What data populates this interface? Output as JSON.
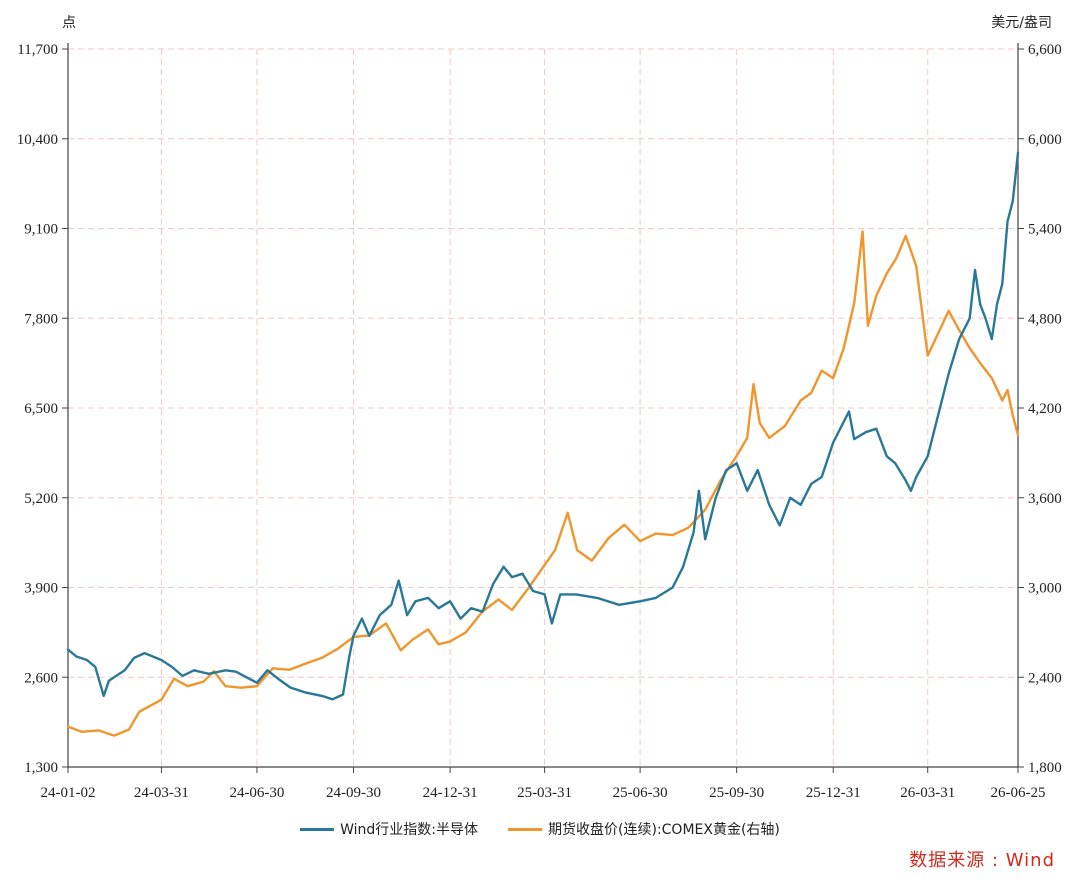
{
  "chart_data": {
    "type": "line",
    "left_axis": {
      "unit": "点",
      "ticks": [
        "11,700",
        "10,400",
        "9,100",
        "7,800",
        "6,500",
        "5,200",
        "3,900",
        "2,600",
        "1,300"
      ],
      "ylim": [
        1300,
        11700
      ]
    },
    "right_axis": {
      "unit": "美元/盎司",
      "ticks": [
        "6,600",
        "6,000",
        "5,400",
        "4,800",
        "4,200",
        "3,600",
        "3,000",
        "2,400",
        "1,800"
      ],
      "ylim": [
        1800,
        6600
      ]
    },
    "x_ticks": [
      "24-01-02",
      "24-03-31",
      "24-06-30",
      "24-09-30",
      "24-12-31",
      "25-03-31",
      "25-06-30",
      "25-09-30",
      "25-12-31",
      "26-03-31",
      "26-06-25"
    ],
    "grid": true,
    "legend_position": "bottom",
    "series": [
      {
        "name": "Wind行业指数:半导体",
        "axis": "left",
        "color": "#2a7897",
        "points": [
          [
            "24-01-02",
            3000
          ],
          [
            "24-01-10",
            2900
          ],
          [
            "24-01-20",
            2850
          ],
          [
            "24-01-28",
            2750
          ],
          [
            "24-02-05",
            2330
          ],
          [
            "24-02-10",
            2550
          ],
          [
            "24-02-25",
            2700
          ],
          [
            "24-03-05",
            2880
          ],
          [
            "24-03-15",
            2950
          ],
          [
            "24-03-31",
            2850
          ],
          [
            "24-04-10",
            2750
          ],
          [
            "24-04-20",
            2620
          ],
          [
            "24-05-01",
            2700
          ],
          [
            "24-05-15",
            2650
          ],
          [
            "24-05-31",
            2700
          ],
          [
            "24-06-10",
            2680
          ],
          [
            "24-06-20",
            2600
          ],
          [
            "24-06-30",
            2520
          ],
          [
            "24-07-10",
            2700
          ],
          [
            "24-07-20",
            2580
          ],
          [
            "24-08-01",
            2450
          ],
          [
            "24-08-15",
            2380
          ],
          [
            "24-08-31",
            2330
          ],
          [
            "24-09-10",
            2280
          ],
          [
            "24-09-20",
            2350
          ],
          [
            "24-09-26",
            2900
          ],
          [
            "24-09-30",
            3200
          ],
          [
            "24-10-08",
            3450
          ],
          [
            "24-10-15",
            3200
          ],
          [
            "24-10-25",
            3500
          ],
          [
            "24-11-05",
            3650
          ],
          [
            "24-11-12",
            4000
          ],
          [
            "24-11-20",
            3500
          ],
          [
            "24-11-28",
            3700
          ],
          [
            "24-12-10",
            3750
          ],
          [
            "24-12-20",
            3600
          ],
          [
            "24-12-31",
            3700
          ],
          [
            "25-01-10",
            3450
          ],
          [
            "25-01-20",
            3600
          ],
          [
            "25-01-31",
            3550
          ],
          [
            "25-02-10",
            3950
          ],
          [
            "25-02-20",
            4200
          ],
          [
            "25-02-28",
            4050
          ],
          [
            "25-03-10",
            4100
          ],
          [
            "25-03-20",
            3850
          ],
          [
            "25-03-31",
            3800
          ],
          [
            "25-04-07",
            3380
          ],
          [
            "25-04-15",
            3800
          ],
          [
            "25-04-30",
            3800
          ],
          [
            "25-05-20",
            3750
          ],
          [
            "25-06-10",
            3650
          ],
          [
            "25-06-30",
            3700
          ],
          [
            "25-07-15",
            3750
          ],
          [
            "25-07-31",
            3900
          ],
          [
            "25-08-10",
            4200
          ],
          [
            "25-08-20",
            4700
          ],
          [
            "25-08-25",
            5300
          ],
          [
            "25-08-31",
            4600
          ],
          [
            "25-09-10",
            5200
          ],
          [
            "25-09-20",
            5600
          ],
          [
            "25-09-30",
            5700
          ],
          [
            "25-10-10",
            5300
          ],
          [
            "25-10-20",
            5600
          ],
          [
            "25-10-31",
            5100
          ],
          [
            "25-11-10",
            4800
          ],
          [
            "25-11-20",
            5200
          ],
          [
            "25-11-30",
            5100
          ],
          [
            "25-12-10",
            5400
          ],
          [
            "25-12-20",
            5500
          ],
          [
            "25-12-31",
            6000
          ],
          [
            "26-01-10",
            6300
          ],
          [
            "26-01-15",
            6450
          ],
          [
            "26-01-20",
            6050
          ],
          [
            "26-01-31",
            6150
          ],
          [
            "26-02-10",
            6200
          ],
          [
            "26-02-20",
            5800
          ],
          [
            "26-02-28",
            5700
          ],
          [
            "26-03-10",
            5450
          ],
          [
            "26-03-15",
            5300
          ],
          [
            "26-03-20",
            5500
          ],
          [
            "26-03-31",
            5800
          ],
          [
            "26-04-10",
            6400
          ],
          [
            "26-04-20",
            7000
          ],
          [
            "26-04-30",
            7500
          ],
          [
            "26-05-10",
            7800
          ],
          [
            "26-05-15",
            8500
          ],
          [
            "26-05-20",
            8000
          ],
          [
            "26-05-25",
            7800
          ],
          [
            "26-05-31",
            7500
          ],
          [
            "26-06-05",
            8000
          ],
          [
            "26-06-10",
            8300
          ],
          [
            "26-06-15",
            9200
          ],
          [
            "26-06-20",
            9500
          ],
          [
            "26-06-25",
            10200
          ]
        ]
      },
      {
        "name": "期货收盘价(连续):COMEX黄金(右轴)",
        "axis": "right",
        "color": "#f0962c",
        "points": [
          [
            "24-01-02",
            2070
          ],
          [
            "24-01-15",
            2035
          ],
          [
            "24-01-31",
            2045
          ],
          [
            "24-02-15",
            2010
          ],
          [
            "24-02-29",
            2050
          ],
          [
            "24-03-10",
            2170
          ],
          [
            "24-03-31",
            2250
          ],
          [
            "24-04-12",
            2390
          ],
          [
            "24-04-25",
            2340
          ],
          [
            "24-05-10",
            2370
          ],
          [
            "24-05-20",
            2440
          ],
          [
            "24-05-31",
            2340
          ],
          [
            "24-06-15",
            2330
          ],
          [
            "24-06-30",
            2340
          ],
          [
            "24-07-15",
            2460
          ],
          [
            "24-07-31",
            2450
          ],
          [
            "24-08-15",
            2490
          ],
          [
            "24-08-31",
            2530
          ],
          [
            "24-09-15",
            2590
          ],
          [
            "24-09-30",
            2670
          ],
          [
            "24-10-15",
            2680
          ],
          [
            "24-10-31",
            2760
          ],
          [
            "24-11-14",
            2580
          ],
          [
            "24-11-25",
            2650
          ],
          [
            "24-12-10",
            2720
          ],
          [
            "24-12-20",
            2620
          ],
          [
            "24-12-31",
            2640
          ],
          [
            "25-01-15",
            2700
          ],
          [
            "25-01-31",
            2840
          ],
          [
            "25-02-15",
            2920
          ],
          [
            "25-02-28",
            2850
          ],
          [
            "25-03-15",
            2990
          ],
          [
            "25-03-31",
            3150
          ],
          [
            "25-04-10",
            3250
          ],
          [
            "25-04-22",
            3500
          ],
          [
            "25-05-01",
            3250
          ],
          [
            "25-05-15",
            3180
          ],
          [
            "25-05-31",
            3330
          ],
          [
            "25-06-15",
            3420
          ],
          [
            "25-06-30",
            3310
          ],
          [
            "25-07-15",
            3360
          ],
          [
            "25-07-31",
            3350
          ],
          [
            "25-08-15",
            3400
          ],
          [
            "25-08-31",
            3520
          ],
          [
            "25-09-15",
            3720
          ],
          [
            "25-09-30",
            3880
          ],
          [
            "25-10-10",
            4000
          ],
          [
            "25-10-16",
            4360
          ],
          [
            "25-10-22",
            4100
          ],
          [
            "25-10-31",
            4000
          ],
          [
            "25-11-15",
            4080
          ],
          [
            "25-11-30",
            4250
          ],
          [
            "25-12-10",
            4300
          ],
          [
            "25-12-20",
            4450
          ],
          [
            "25-12-31",
            4400
          ],
          [
            "26-01-10",
            4600
          ],
          [
            "26-01-20",
            4900
          ],
          [
            "26-01-28",
            5380
          ],
          [
            "26-02-02",
            4750
          ],
          [
            "26-02-10",
            4950
          ],
          [
            "26-02-20",
            5100
          ],
          [
            "26-03-01",
            5200
          ],
          [
            "26-03-10",
            5350
          ],
          [
            "26-03-20",
            5150
          ],
          [
            "26-03-31",
            4550
          ],
          [
            "26-04-10",
            4700
          ],
          [
            "26-04-20",
            4850
          ],
          [
            "26-04-30",
            4720
          ],
          [
            "26-05-10",
            4600
          ],
          [
            "26-05-20",
            4500
          ],
          [
            "26-05-31",
            4400
          ],
          [
            "26-06-10",
            4250
          ],
          [
            "26-06-15",
            4320
          ],
          [
            "26-06-20",
            4150
          ],
          [
            "26-06-25",
            4020
          ]
        ]
      }
    ]
  },
  "source_note": "数据来源 : Wind"
}
